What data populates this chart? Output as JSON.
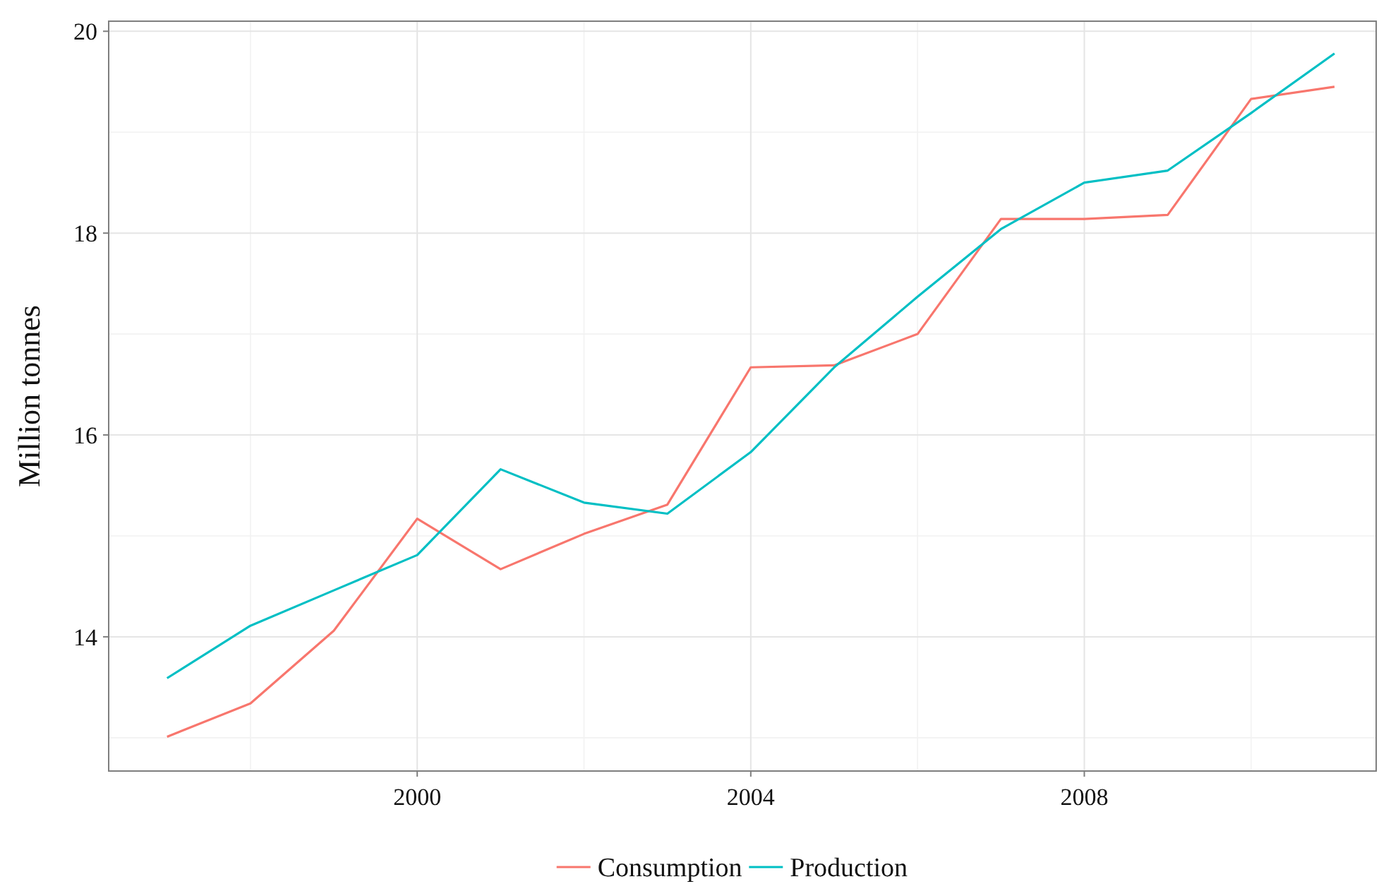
{
  "chart_data": {
    "type": "line",
    "ylabel": "Million tonnes",
    "x": [
      1997,
      1998,
      1999,
      2000,
      2001,
      2002,
      2003,
      2004,
      2005,
      2006,
      2007,
      2008,
      2009,
      2010,
      2011
    ],
    "series": [
      {
        "name": "Consumption",
        "color": "#f8766d",
        "values": [
          13.01,
          13.34,
          14.06,
          15.17,
          14.67,
          15.02,
          15.31,
          16.67,
          16.69,
          17.0,
          18.14,
          18.14,
          18.18,
          19.33,
          19.45
        ]
      },
      {
        "name": "Production",
        "color": "#00bfc4",
        "values": [
          13.59,
          14.11,
          14.46,
          14.81,
          15.66,
          15.33,
          15.22,
          15.83,
          16.67,
          17.37,
          18.04,
          18.5,
          18.62,
          19.19,
          19.78
        ]
      }
    ],
    "xlim": [
      1996.3,
      2011.5
    ],
    "xticks": [
      2000,
      2004,
      2008
    ],
    "ylim": [
      12.67,
      20.1
    ],
    "yticks": [
      14,
      16,
      18,
      20
    ],
    "grid": true,
    "legend": "bottom"
  }
}
